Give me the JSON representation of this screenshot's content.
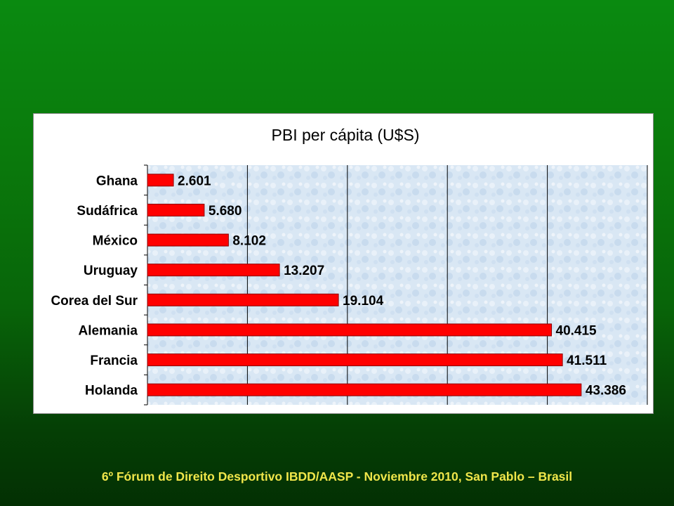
{
  "footer": "6º Fórum de Direito Desportivo IBDD/AASP - Noviembre 2010, San Pablo – Brasil",
  "chart_data": {
    "type": "bar",
    "orientation": "horizontal",
    "title": "PBI per cápita (U$S)",
    "xlabel": "",
    "ylabel": "",
    "categories": [
      "Ghana",
      "Sudáfrica",
      "México",
      "Uruguay",
      "Corea del Sur",
      "Alemania",
      "Francia",
      "Holanda"
    ],
    "values": [
      2601,
      5680,
      8102,
      13207,
      19104,
      40415,
      41511,
      43386
    ],
    "data_labels": [
      "2.601",
      "5.680",
      "8.102",
      "13.207",
      "19.104",
      "40.415",
      "41.511",
      "43.386"
    ],
    "xlim": [
      0,
      50000
    ],
    "x_gridline_step": 10000,
    "grid": true,
    "legend": "none",
    "bar_color": "#ff0000",
    "bar_edge_color": "#8b0000",
    "plot_background": "#dbe8f4"
  }
}
